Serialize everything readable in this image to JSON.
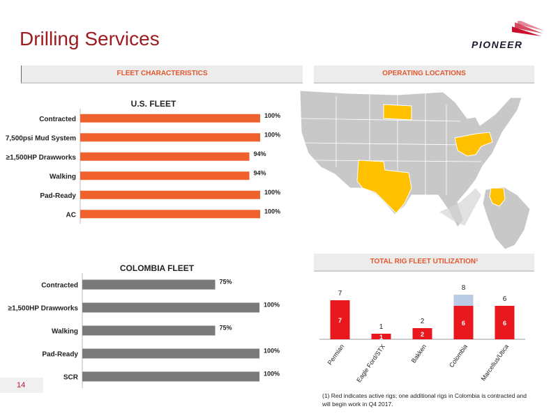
{
  "page": {
    "title": "Drilling Services",
    "logo_text": "PIONEER",
    "page_number": "14",
    "footnote": "(1) Red indicates active rigs; one additional rigs in Colombia is contracted and will begin work in Q4 2017."
  },
  "bands": {
    "fleet": "FLEET CHARACTERISTICS",
    "locations": "OPERATING LOCATIONS",
    "utilization": "TOTAL RIG FLEET UTILIZATION¹"
  },
  "colors": {
    "brand_red": "#9b1b1f",
    "us_bar": "#f0622d",
    "col_bar": "#7a7a7a",
    "active_rig": "#e8181e",
    "inactive_rig": "#b9cce4",
    "highlight_state": "#ffc000",
    "map_gray": "#c8c8c8"
  },
  "chart_data": [
    {
      "type": "bar",
      "orientation": "horizontal",
      "title": "U.S. FLEET",
      "categories": [
        "Contracted",
        "7,500psi Mud System",
        "≥1,500HP Drawworks",
        "Walking",
        "Pad-Ready",
        "AC"
      ],
      "values": [
        100,
        100,
        94,
        94,
        100,
        100
      ],
      "labels": [
        "100%",
        "100%",
        "94%",
        "94%",
        "100%",
        "100%"
      ],
      "xlim": [
        0,
        100
      ]
    },
    {
      "type": "bar",
      "orientation": "horizontal",
      "title": "COLOMBIA FLEET",
      "categories": [
        "Contracted",
        "≥1,500HP Drawworks",
        "Walking",
        "Pad-Ready",
        "SCR"
      ],
      "values": [
        75,
        100,
        75,
        100,
        100
      ],
      "labels": [
        "75%",
        "100%",
        "75%",
        "100%",
        "100%"
      ],
      "xlim": [
        0,
        100
      ]
    },
    {
      "type": "bar",
      "stacked": true,
      "title": "",
      "categories": [
        "Permian",
        "Eagle Ford/STX",
        "Bakken",
        "Colombia",
        "Marcellus/Utica"
      ],
      "series": [
        {
          "values": [
            7,
            1,
            2,
            6,
            6
          ],
          "color": "#e8181e"
        },
        {
          "values": [
            0,
            0,
            0,
            2,
            0
          ],
          "color": "#b9cce4"
        }
      ],
      "totals": [
        7,
        1,
        2,
        8,
        6
      ],
      "ylim": [
        0,
        8
      ]
    }
  ],
  "map": {
    "highlighted_regions": [
      "North Dakota",
      "Ohio",
      "Pennsylvania",
      "West Virginia",
      "Texas",
      "New Mexico",
      "Colombia"
    ]
  }
}
